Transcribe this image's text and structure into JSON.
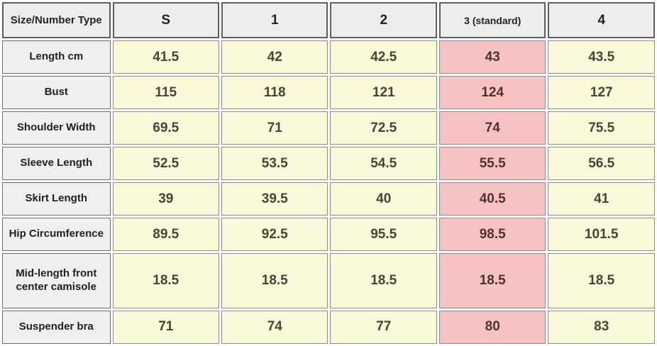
{
  "table": {
    "corner_label": "Size/Number Type",
    "columns": [
      "S",
      "1",
      "2",
      "3 (standard)",
      "4"
    ],
    "highlight_column": "3 (standard)",
    "rows": [
      {
        "label": "Length cm",
        "values": [
          "41.5",
          "42",
          "42.5",
          "43",
          "43.5"
        ]
      },
      {
        "label": "Bust",
        "values": [
          "115",
          "118",
          "121",
          "124",
          "127"
        ]
      },
      {
        "label": "Shoulder Width",
        "values": [
          "69.5",
          "71",
          "72.5",
          "74",
          "75.5"
        ]
      },
      {
        "label": "Sleeve Length",
        "values": [
          "52.5",
          "53.5",
          "54.5",
          "55.5",
          "56.5"
        ]
      },
      {
        "label": "Skirt Length",
        "values": [
          "39",
          "39.5",
          "40",
          "40.5",
          "41"
        ]
      },
      {
        "label": "Hip Circumference",
        "values": [
          "89.5",
          "92.5",
          "95.5",
          "98.5",
          "101.5"
        ]
      },
      {
        "label": "Mid-length front center camisole",
        "values": [
          "18.5",
          "18.5",
          "18.5",
          "18.5",
          "18.5"
        ]
      },
      {
        "label": "Suspender bra",
        "values": [
          "71",
          "74",
          "77",
          "80",
          "83"
        ]
      }
    ]
  },
  "colors": {
    "header_bg": "#ededed",
    "label_bg": "#efefef",
    "cell_yellow": "#f9f8d8",
    "cell_pink": "#f7c2c2",
    "border_color": "#7a7a7a"
  },
  "chart_data": {
    "type": "table",
    "columns": [
      "Size/Number Type",
      "S",
      "1",
      "2",
      "3 (standard)",
      "4"
    ],
    "rows": [
      [
        "Length cm",
        41.5,
        42,
        42.5,
        43,
        43.5
      ],
      [
        "Bust",
        115,
        118,
        121,
        124,
        127
      ],
      [
        "Shoulder Width",
        69.5,
        71,
        72.5,
        74,
        75.5
      ],
      [
        "Sleeve Length",
        52.5,
        53.5,
        54.5,
        55.5,
        56.5
      ],
      [
        "Skirt Length",
        39,
        39.5,
        40,
        40.5,
        41
      ],
      [
        "Hip Circumference",
        89.5,
        92.5,
        95.5,
        98.5,
        101.5
      ],
      [
        "Mid-length front center camisole",
        18.5,
        18.5,
        18.5,
        18.5,
        18.5
      ],
      [
        "Suspender bra",
        71,
        74,
        77,
        80,
        83
      ]
    ],
    "highlight_column": "3 (standard)",
    "notes": "Column '3 (standard)' data cells highlighted pink; other data cells pale yellow"
  }
}
